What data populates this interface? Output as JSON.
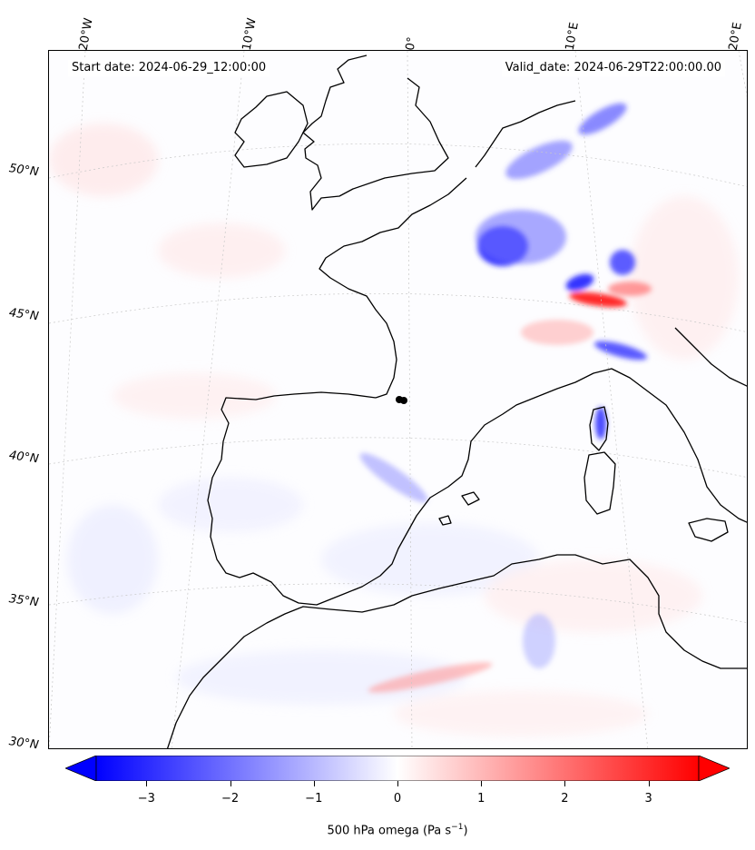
{
  "header": {
    "start_date": "Start date: 2024-06-29_12:00:00",
    "valid_date": "Valid_date: 2024-06-29T22:00:00.00"
  },
  "axes": {
    "lat_labels": [
      "50°N",
      "45°N",
      "40°N",
      "35°N",
      "30°N"
    ],
    "lon_labels": [
      "20°W",
      "10°W",
      "0°",
      "10°E",
      "20°E"
    ]
  },
  "colorbar": {
    "label": "500 hPa omega (Pa s",
    "label_exp": "−1",
    "label_end": ")",
    "ticks": [
      "−3",
      "−2",
      "−1",
      "0",
      "1",
      "2",
      "3"
    ],
    "tick_values": [
      -3,
      -2,
      -1,
      0,
      1,
      2,
      3
    ],
    "range": [
      -3.6,
      3.6
    ],
    "cmap": "bwr",
    "color_low": "#0000ff",
    "color_mid": "#ffffff",
    "color_high": "#ff0000"
  },
  "colors": {
    "coastline": "#000000",
    "gridline": "#c8c8c8"
  }
}
